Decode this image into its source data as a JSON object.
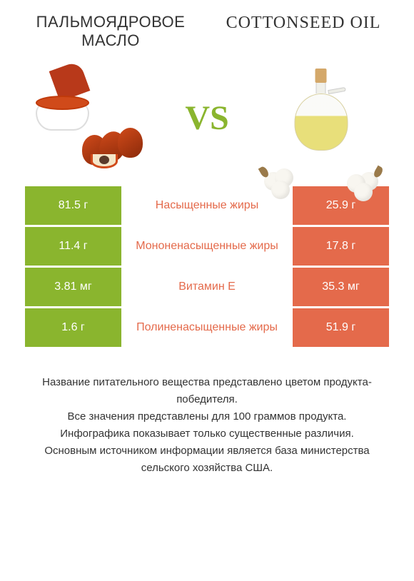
{
  "colors": {
    "left_bar": "#8ab52e",
    "right_bar": "#e46a4b",
    "vs": "#8ab52e",
    "mid_text_left": "#e46a4b",
    "mid_text_right": "#8ab52e"
  },
  "products": {
    "left": {
      "title": "ПАЛЬМОЯДРОВОЕ МАСЛО"
    },
    "right": {
      "title": "COTTONSEED OIL"
    }
  },
  "vs_label": "VS",
  "rows": [
    {
      "left": "81.5 г",
      "label": "Насыщенные жиры",
      "right": "25.9 г",
      "winner": "left"
    },
    {
      "left": "11.4 г",
      "label": "Мононенасыщенные жиры",
      "right": "17.8 г",
      "winner": "right"
    },
    {
      "left": "3.81 мг",
      "label": "Витамин E",
      "right": "35.3 мг",
      "winner": "right"
    },
    {
      "left": "1.6 г",
      "label": "Полиненасыщенные жиры",
      "right": "51.9 г",
      "winner": "right"
    }
  ],
  "footnote": {
    "line1": "Название питательного вещества представлено цветом продукта-победителя.",
    "line2": "Все значения представлены для 100 граммов продукта.",
    "line3": "Инфографика показывает только существенные различия.",
    "line4": "Основным источником информации является база министерства сельского хозяйства США."
  }
}
